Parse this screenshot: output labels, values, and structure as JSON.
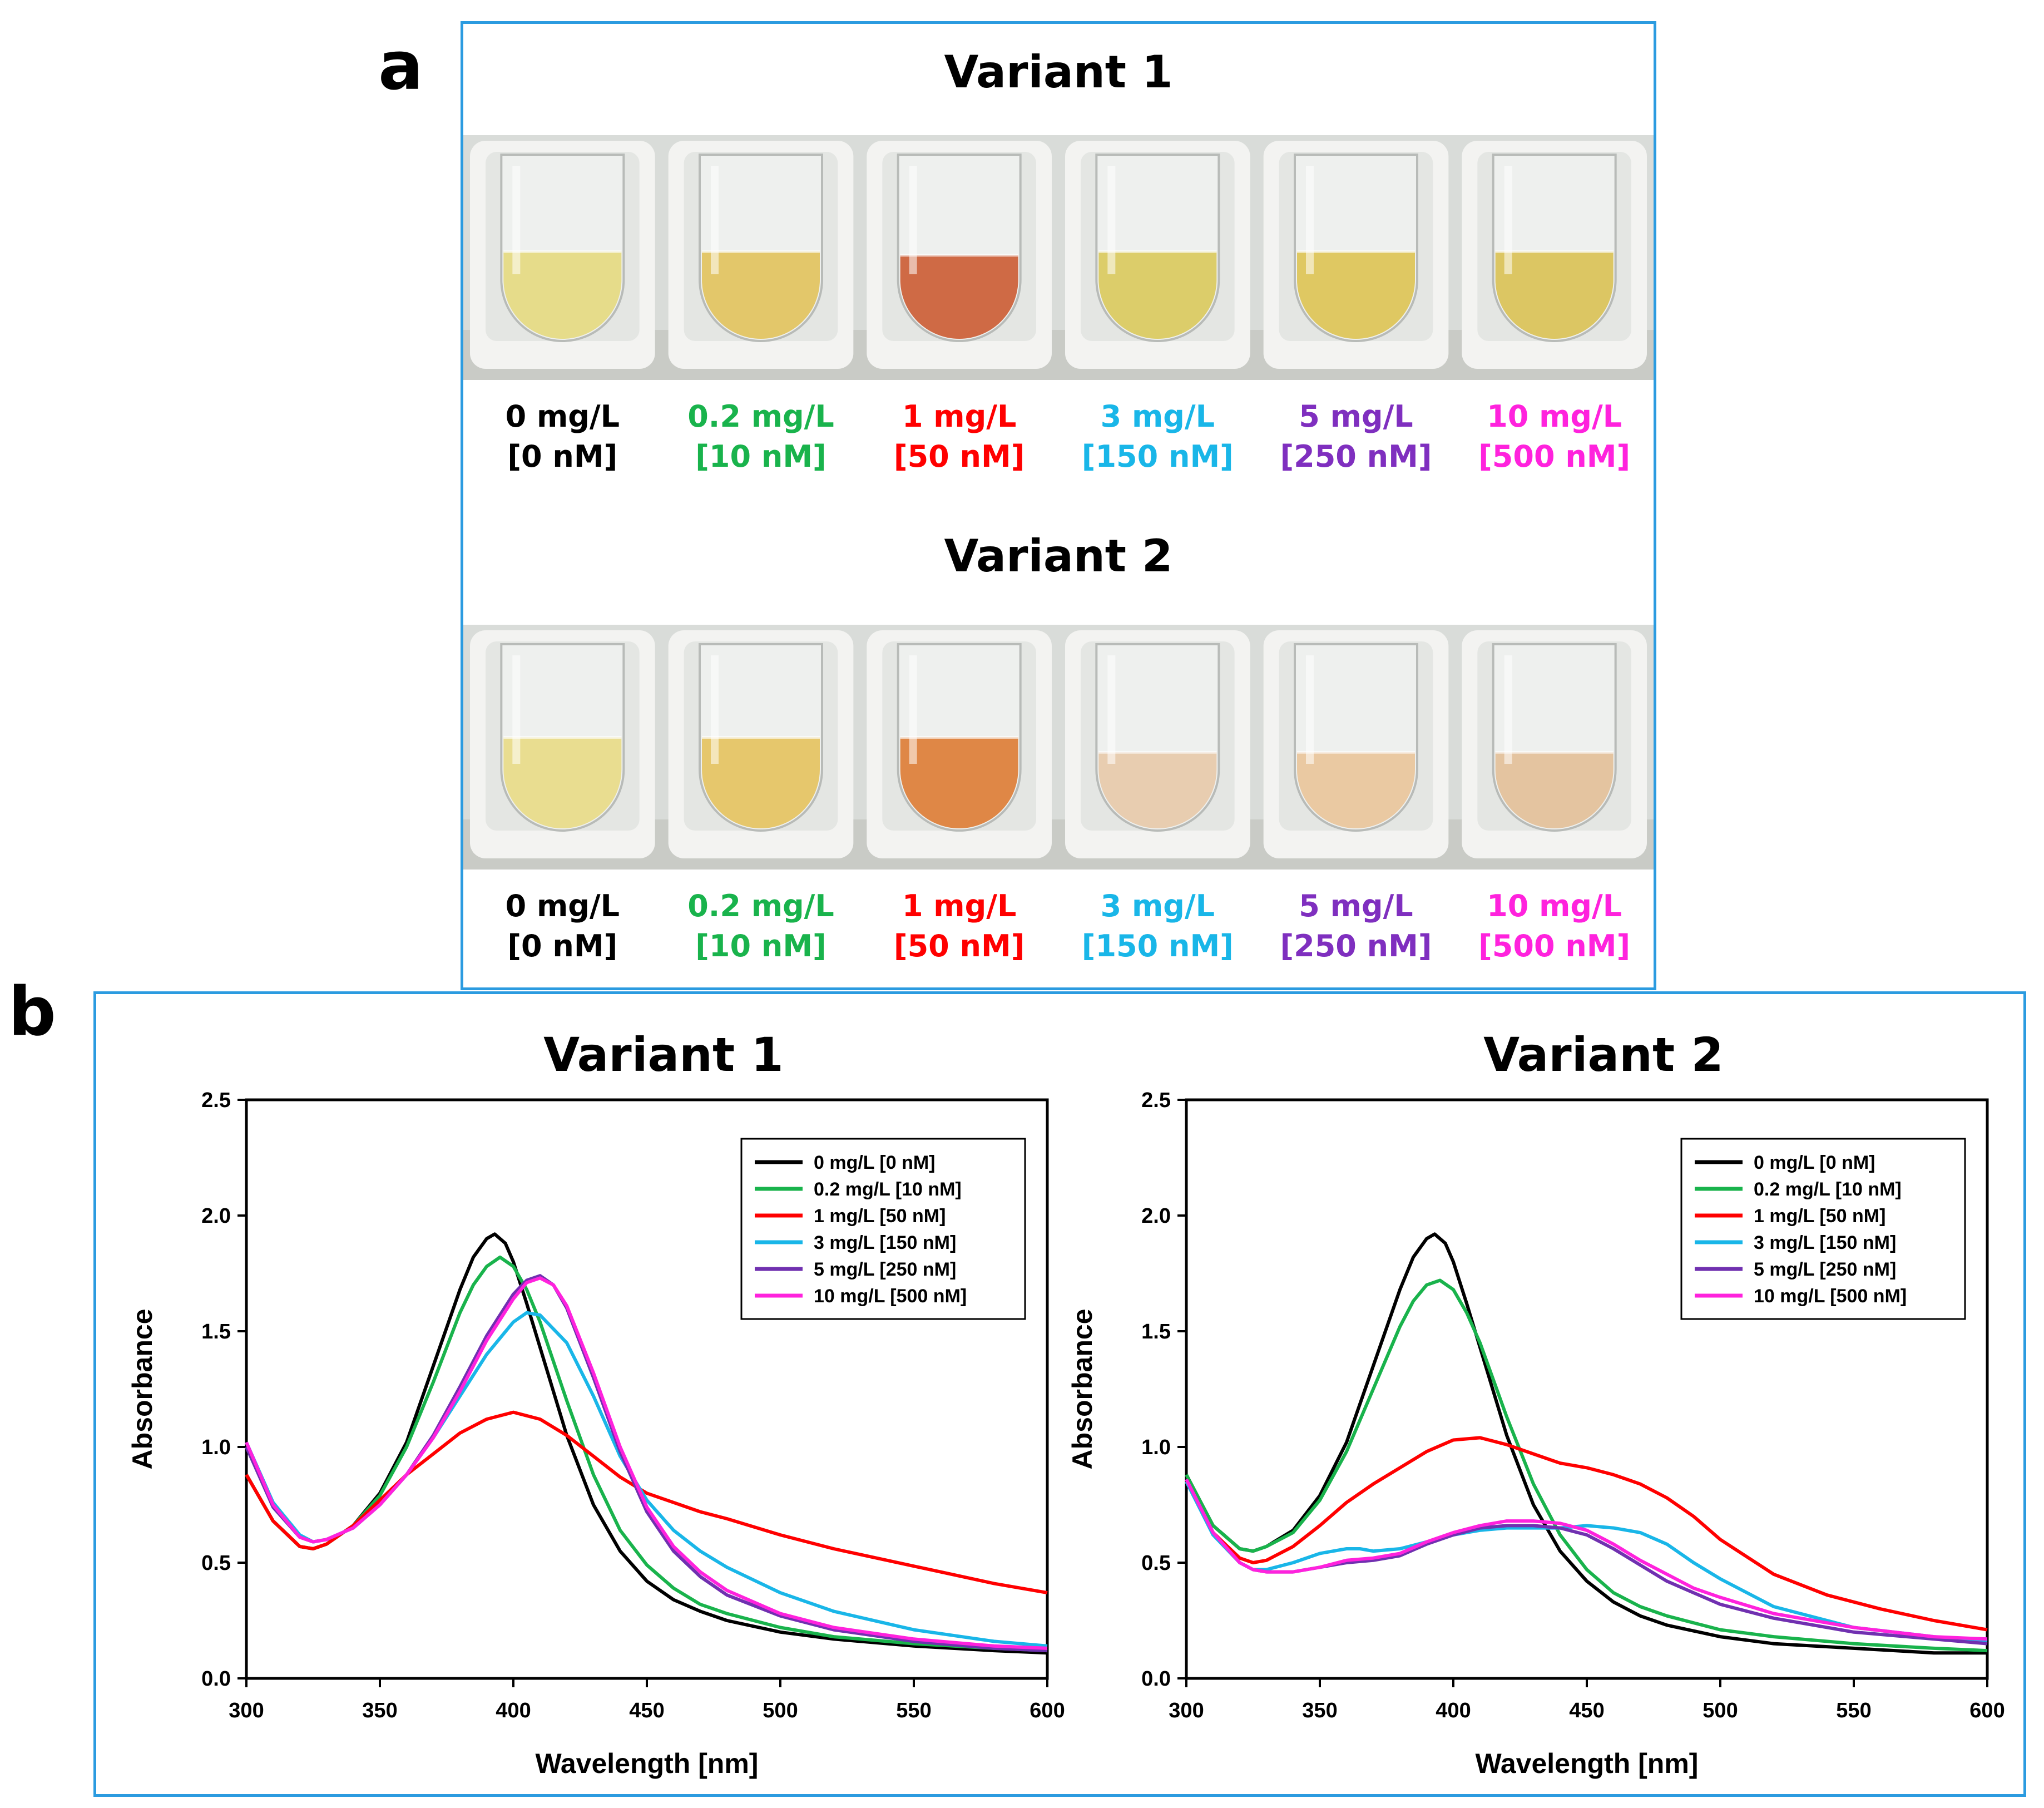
{
  "panel_a": {
    "letter": "a",
    "variants": [
      {
        "title": "Variant 1",
        "samples": [
          {
            "mass": "0 mg/L",
            "molar": "[0 nM]",
            "color": "#000000",
            "liquid": "#e6dc8a",
            "level": 0.48
          },
          {
            "mass": "0.2 mg/L",
            "molar": "[10 nM]",
            "color": "#19b34c",
            "liquid": "#e3c76a",
            "level": 0.48
          },
          {
            "mass": "1 mg/L",
            "molar": "[50 nM]",
            "color": "#ff0000",
            "liquid": "#cf6a45",
            "level": 0.46
          },
          {
            "mass": "3 mg/L",
            "molar": "[150 nM]",
            "color": "#19b6e8",
            "liquid": "#dccd6a",
            "level": 0.48
          },
          {
            "mass": "5 mg/L",
            "molar": "[250 nM]",
            "color": "#7f2fbf",
            "liquid": "#dfc862",
            "level": 0.48
          },
          {
            "mass": "10 mg/L",
            "molar": "[500 nM]",
            "color": "#ff22dd",
            "liquid": "#dcc663",
            "level": 0.48
          }
        ]
      },
      {
        "title": "Variant 2",
        "samples": [
          {
            "mass": "0 mg/L",
            "molar": "[0 nM]",
            "color": "#000000",
            "liquid": "#e9dd90",
            "level": 0.5
          },
          {
            "mass": "0.2 mg/L",
            "molar": "[10 nM]",
            "color": "#19b34c",
            "liquid": "#e6c76c",
            "level": 0.5
          },
          {
            "mass": "1 mg/L",
            "molar": "[50 nM]",
            "color": "#ff0000",
            "liquid": "#df8746",
            "level": 0.5
          },
          {
            "mass": "3 mg/L",
            "molar": "[150 nM]",
            "color": "#19b6e8",
            "liquid": "#e8cdb0",
            "level": 0.42
          },
          {
            "mass": "5 mg/L",
            "molar": "[250 nM]",
            "color": "#7f2fbf",
            "liquid": "#eac9a2",
            "level": 0.42
          },
          {
            "mass": "10 mg/L",
            "molar": "[500 nM]",
            "color": "#ff22dd",
            "liquid": "#e4c4a0",
            "level": 0.42
          }
        ]
      }
    ]
  },
  "panel_b": {
    "letter": "b"
  },
  "chart_data": [
    {
      "type": "line",
      "title": "Variant 1",
      "xlabel": "Wavelength [nm]",
      "ylabel": "Absorbance",
      "xlim": [
        300,
        600
      ],
      "ylim": [
        0,
        2.5
      ],
      "xticks": [
        300,
        350,
        400,
        450,
        500,
        550,
        600
      ],
      "yticks": [
        0.0,
        0.5,
        1.0,
        1.5,
        2.0,
        2.5
      ],
      "legend_position": "top-right",
      "grid": false,
      "series": [
        {
          "name": "0 mg/L [0 nM]",
          "color": "#000000",
          "x": [
            300,
            310,
            320,
            325,
            330,
            340,
            350,
            360,
            370,
            380,
            385,
            390,
            393,
            397,
            400,
            405,
            410,
            420,
            430,
            440,
            450,
            460,
            470,
            480,
            500,
            520,
            550,
            580,
            600
          ],
          "y": [
            0.88,
            0.68,
            0.57,
            0.56,
            0.58,
            0.66,
            0.8,
            1.02,
            1.35,
            1.68,
            1.82,
            1.9,
            1.92,
            1.88,
            1.8,
            1.62,
            1.43,
            1.05,
            0.75,
            0.55,
            0.42,
            0.34,
            0.29,
            0.25,
            0.2,
            0.17,
            0.14,
            0.12,
            0.11
          ]
        },
        {
          "name": "0.2 mg/L [10 nM]",
          "color": "#19b34c",
          "x": [
            300,
            310,
            320,
            325,
            330,
            340,
            350,
            360,
            370,
            380,
            385,
            390,
            395,
            400,
            405,
            410,
            420,
            430,
            440,
            450,
            460,
            470,
            480,
            500,
            520,
            550,
            580,
            600
          ],
          "y": [
            0.88,
            0.68,
            0.57,
            0.56,
            0.58,
            0.66,
            0.79,
            1.0,
            1.28,
            1.58,
            1.7,
            1.78,
            1.82,
            1.78,
            1.68,
            1.54,
            1.2,
            0.88,
            0.64,
            0.49,
            0.39,
            0.32,
            0.28,
            0.22,
            0.18,
            0.15,
            0.13,
            0.12
          ]
        },
        {
          "name": "1 mg/L [50 nM]",
          "color": "#ff0000",
          "x": [
            300,
            310,
            320,
            325,
            330,
            340,
            350,
            360,
            370,
            380,
            390,
            400,
            410,
            420,
            430,
            440,
            450,
            460,
            470,
            480,
            500,
            520,
            540,
            560,
            580,
            600
          ],
          "y": [
            0.88,
            0.68,
            0.57,
            0.56,
            0.58,
            0.66,
            0.77,
            0.88,
            0.97,
            1.06,
            1.12,
            1.15,
            1.12,
            1.05,
            0.96,
            0.87,
            0.8,
            0.76,
            0.72,
            0.69,
            0.62,
            0.56,
            0.51,
            0.46,
            0.41,
            0.37
          ]
        },
        {
          "name": "3 mg/L [150 nM]",
          "color": "#19b6e8",
          "x": [
            300,
            310,
            320,
            325,
            330,
            340,
            350,
            360,
            370,
            380,
            390,
            400,
            405,
            410,
            420,
            430,
            440,
            450,
            460,
            470,
            480,
            500,
            520,
            550,
            580,
            600
          ],
          "y": [
            1.02,
            0.76,
            0.62,
            0.59,
            0.6,
            0.65,
            0.75,
            0.88,
            1.04,
            1.22,
            1.4,
            1.54,
            1.58,
            1.57,
            1.45,
            1.22,
            0.96,
            0.77,
            0.64,
            0.55,
            0.48,
            0.37,
            0.29,
            0.21,
            0.16,
            0.14
          ]
        },
        {
          "name": "5 mg/L [250 nM]",
          "color": "#7030b0",
          "x": [
            300,
            310,
            320,
            325,
            330,
            340,
            350,
            360,
            370,
            380,
            390,
            400,
            405,
            410,
            415,
            420,
            430,
            440,
            450,
            460,
            470,
            480,
            500,
            520,
            550,
            580,
            600
          ],
          "y": [
            1.0,
            0.74,
            0.61,
            0.59,
            0.6,
            0.65,
            0.75,
            0.88,
            1.05,
            1.26,
            1.48,
            1.66,
            1.72,
            1.74,
            1.7,
            1.6,
            1.3,
            0.98,
            0.72,
            0.55,
            0.44,
            0.36,
            0.27,
            0.21,
            0.16,
            0.13,
            0.12
          ]
        },
        {
          "name": "10 mg/L [500 nM]",
          "color": "#ff22dd",
          "x": [
            300,
            310,
            320,
            325,
            330,
            340,
            350,
            360,
            370,
            380,
            390,
            400,
            405,
            410,
            415,
            420,
            430,
            440,
            450,
            460,
            470,
            480,
            500,
            520,
            550,
            580,
            600
          ],
          "y": [
            1.02,
            0.75,
            0.61,
            0.59,
            0.6,
            0.65,
            0.75,
            0.88,
            1.04,
            1.24,
            1.46,
            1.64,
            1.71,
            1.73,
            1.7,
            1.61,
            1.32,
            1.0,
            0.74,
            0.57,
            0.46,
            0.38,
            0.28,
            0.22,
            0.17,
            0.14,
            0.13
          ]
        }
      ]
    },
    {
      "type": "line",
      "title": "Variant 2",
      "xlabel": "Wavelength [nm]",
      "ylabel": "Absorbance",
      "xlim": [
        300,
        600
      ],
      "ylim": [
        0,
        2.5
      ],
      "xticks": [
        300,
        350,
        400,
        450,
        500,
        550,
        600
      ],
      "yticks": [
        0.0,
        0.5,
        1.0,
        1.5,
        2.0,
        2.5
      ],
      "legend_position": "top-right",
      "grid": false,
      "series": [
        {
          "name": "0 mg/L [0 nM]",
          "color": "#000000",
          "x": [
            300,
            310,
            320,
            325,
            330,
            340,
            350,
            360,
            370,
            380,
            385,
            390,
            393,
            397,
            400,
            405,
            410,
            420,
            430,
            440,
            450,
            460,
            470,
            480,
            500,
            520,
            550,
            580,
            600
          ],
          "y": [
            0.88,
            0.66,
            0.56,
            0.55,
            0.57,
            0.64,
            0.79,
            1.02,
            1.35,
            1.68,
            1.82,
            1.9,
            1.92,
            1.88,
            1.8,
            1.62,
            1.43,
            1.05,
            0.75,
            0.55,
            0.42,
            0.33,
            0.27,
            0.23,
            0.18,
            0.15,
            0.13,
            0.11,
            0.11
          ]
        },
        {
          "name": "0.2 mg/L [10 nM]",
          "color": "#19b34c",
          "x": [
            300,
            310,
            320,
            325,
            330,
            340,
            350,
            360,
            370,
            380,
            385,
            390,
            395,
            400,
            405,
            410,
            420,
            430,
            440,
            450,
            460,
            470,
            480,
            500,
            520,
            550,
            580,
            600
          ],
          "y": [
            0.88,
            0.66,
            0.56,
            0.55,
            0.57,
            0.63,
            0.77,
            0.98,
            1.25,
            1.52,
            1.63,
            1.7,
            1.72,
            1.68,
            1.58,
            1.45,
            1.13,
            0.84,
            0.62,
            0.47,
            0.37,
            0.31,
            0.27,
            0.21,
            0.18,
            0.15,
            0.13,
            0.12
          ]
        },
        {
          "name": "1 mg/L [50 nM]",
          "color": "#ff0000",
          "x": [
            300,
            310,
            320,
            325,
            330,
            340,
            350,
            360,
            370,
            380,
            390,
            400,
            410,
            420,
            430,
            440,
            450,
            460,
            470,
            480,
            490,
            500,
            520,
            540,
            560,
            580,
            600
          ],
          "y": [
            0.85,
            0.63,
            0.52,
            0.5,
            0.51,
            0.57,
            0.66,
            0.76,
            0.84,
            0.91,
            0.98,
            1.03,
            1.04,
            1.01,
            0.97,
            0.93,
            0.91,
            0.88,
            0.84,
            0.78,
            0.7,
            0.6,
            0.45,
            0.36,
            0.3,
            0.25,
            0.21
          ]
        },
        {
          "name": "3 mg/L [150 nM]",
          "color": "#19b6e8",
          "x": [
            300,
            310,
            320,
            325,
            330,
            340,
            350,
            360,
            365,
            370,
            380,
            390,
            400,
            410,
            420,
            430,
            440,
            450,
            460,
            470,
            480,
            490,
            500,
            520,
            550,
            580,
            600
          ],
          "y": [
            0.85,
            0.62,
            0.5,
            0.47,
            0.47,
            0.5,
            0.54,
            0.56,
            0.56,
            0.55,
            0.56,
            0.59,
            0.62,
            0.64,
            0.65,
            0.65,
            0.65,
            0.66,
            0.65,
            0.63,
            0.58,
            0.5,
            0.43,
            0.31,
            0.22,
            0.18,
            0.16
          ]
        },
        {
          "name": "5 mg/L [250 nM]",
          "color": "#7030b0",
          "x": [
            300,
            310,
            320,
            325,
            330,
            340,
            350,
            360,
            370,
            380,
            390,
            400,
            410,
            420,
            430,
            440,
            450,
            460,
            470,
            480,
            490,
            500,
            520,
            550,
            580,
            600
          ],
          "y": [
            0.86,
            0.63,
            0.5,
            0.47,
            0.46,
            0.46,
            0.48,
            0.5,
            0.51,
            0.53,
            0.58,
            0.62,
            0.65,
            0.66,
            0.66,
            0.65,
            0.62,
            0.56,
            0.49,
            0.42,
            0.37,
            0.32,
            0.26,
            0.2,
            0.17,
            0.15
          ]
        },
        {
          "name": "10 mg/L [500 nM]",
          "color": "#ff22dd",
          "x": [
            300,
            310,
            320,
            325,
            330,
            340,
            350,
            360,
            370,
            380,
            390,
            400,
            410,
            420,
            430,
            440,
            450,
            460,
            470,
            480,
            490,
            500,
            520,
            550,
            580,
            600
          ],
          "y": [
            0.86,
            0.63,
            0.5,
            0.47,
            0.46,
            0.46,
            0.48,
            0.51,
            0.52,
            0.54,
            0.59,
            0.63,
            0.66,
            0.68,
            0.68,
            0.67,
            0.64,
            0.58,
            0.51,
            0.45,
            0.39,
            0.35,
            0.28,
            0.22,
            0.18,
            0.17
          ]
        }
      ]
    }
  ]
}
